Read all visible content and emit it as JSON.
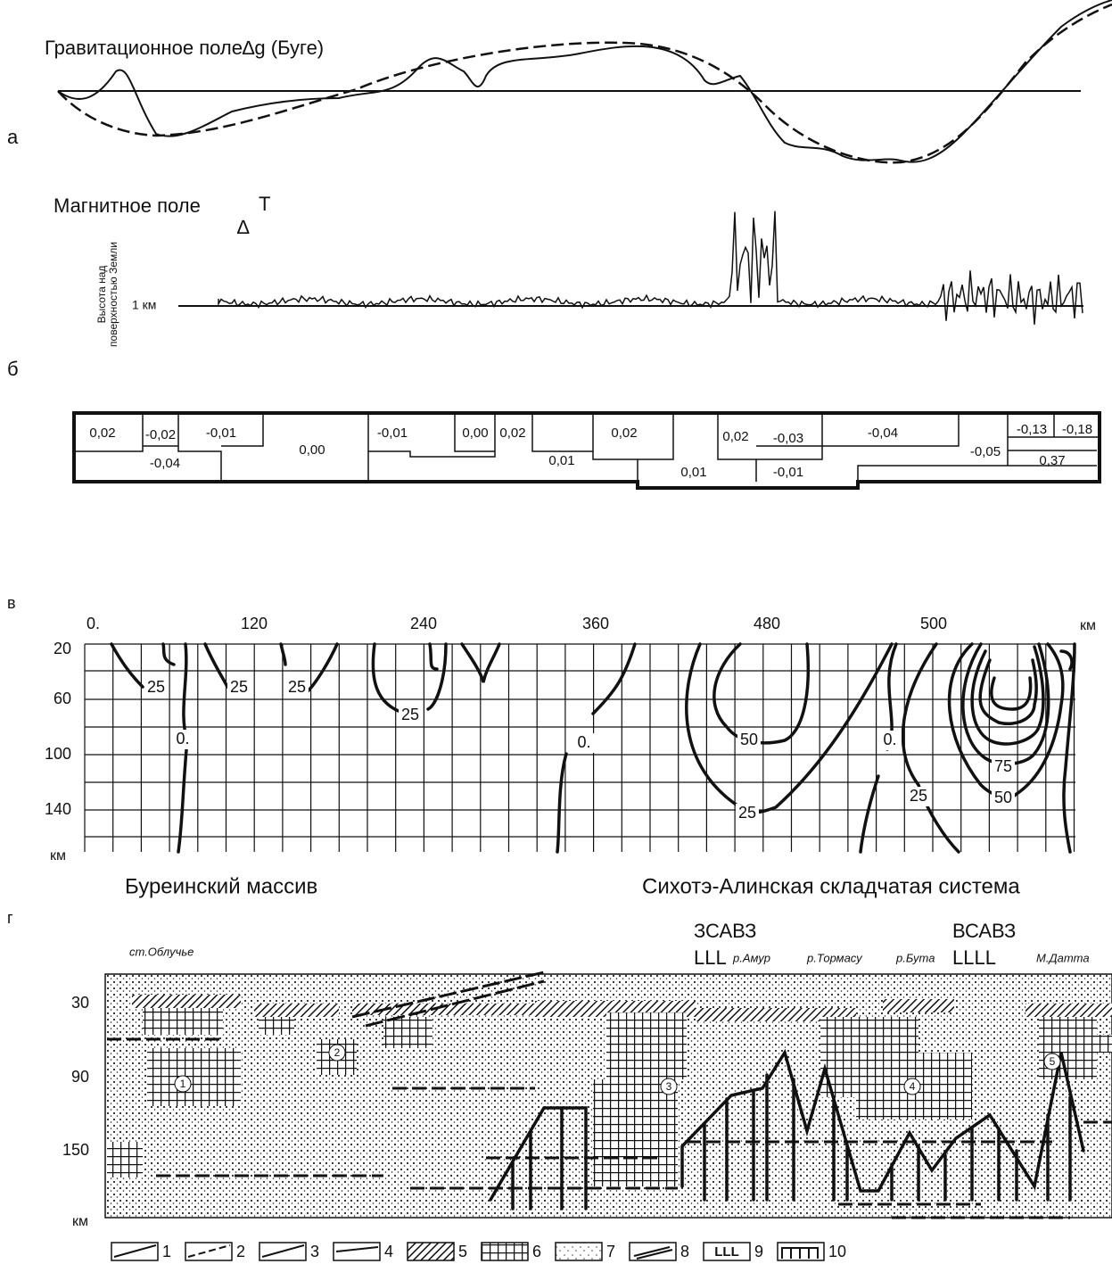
{
  "panel_a": {
    "letter": "а",
    "title": "Гравитационное поле∆g (Буге)"
  },
  "panel_b": {
    "letter": "б",
    "title": "Магнитное поле",
    "symbol_t": "T",
    "symbol_delta": "∆",
    "axis_label": [
      "Высота над",
      "поверхностью Земли"
    ],
    "level": "1 км"
  },
  "table": {
    "cells": [
      "0,02",
      "-0,02",
      "-0,01",
      "-0,04",
      "0,00",
      "-0,01",
      "0,00",
      "0,02",
      "0,01",
      "0,02",
      "0,01",
      "0,02",
      "-0,03",
      "-0,01",
      "-0,04",
      "-0,05",
      "-0,13",
      "-0,18",
      "0,37"
    ]
  },
  "panel_v": {
    "letter": "в",
    "x_labels": [
      "0.",
      "120",
      "240",
      "360",
      "480",
      "500"
    ],
    "x_unit": "км",
    "y_labels": [
      "20",
      "60",
      "100",
      "140"
    ],
    "y_unit": "км",
    "contour_labels": [
      "25",
      "25",
      "25",
      "0.",
      "25",
      "0.",
      "50",
      "25",
      "0.",
      "75",
      "50",
      "25"
    ]
  },
  "regions": [
    "Буреинский массив",
    "Сихотэ-Алинская складчатая система"
  ],
  "panel_g": {
    "letter": "г",
    "zones": [
      "ЗСАВЗ",
      "ВСАВЗ"
    ],
    "zone_marks": [
      "LLL",
      "LLLL"
    ],
    "places": [
      "ст.Облучье",
      "р.Амур",
      "р.Тормасу",
      "р.Бута",
      "М.Датта"
    ],
    "y_labels": [
      "30",
      "90",
      "150"
    ],
    "y_unit": "км",
    "bodies": [
      "1",
      "2",
      "3",
      "4",
      "5"
    ]
  },
  "legend": [
    "1",
    "2",
    "3",
    "4",
    "5",
    "6",
    "7",
    "8",
    "9",
    "10"
  ]
}
